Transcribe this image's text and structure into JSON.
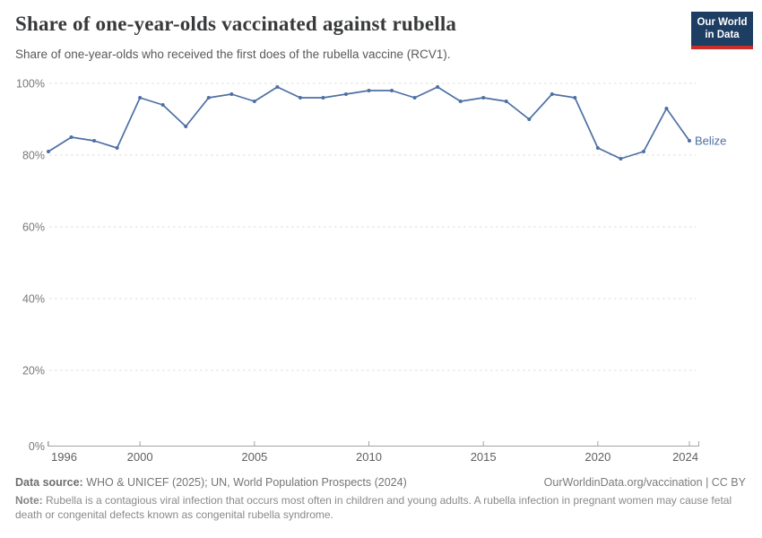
{
  "header": {
    "logo": {
      "line1": "Our World",
      "line2": "in Data",
      "bg_color": "#1d3d63",
      "accent_color": "#cb2d27"
    }
  },
  "chart_data": {
    "type": "line",
    "title": "Share of one-year-olds vaccinated against rubella",
    "subtitle": "Share of one-year-olds who received the first does of the rubella vaccine (RCV1).",
    "x": [
      1996,
      1997,
      1998,
      1999,
      2000,
      2001,
      2002,
      2003,
      2004,
      2005,
      2006,
      2007,
      2008,
      2009,
      2010,
      2011,
      2012,
      2013,
      2014,
      2015,
      2016,
      2017,
      2018,
      2019,
      2020,
      2021,
      2022,
      2023,
      2024
    ],
    "series": [
      {
        "name": "Belize",
        "color": "#4d6fa4",
        "values": [
          81,
          85,
          84,
          82,
          96,
          94,
          88,
          96,
          97,
          95,
          99,
          96,
          96,
          97,
          98,
          98,
          96,
          99,
          95,
          96,
          95,
          90,
          97,
          96,
          82,
          79,
          81,
          93,
          84
        ]
      }
    ],
    "xlabel": "",
    "ylabel": "",
    "ylim": [
      0,
      100
    ],
    "yticks": [
      0,
      20,
      40,
      60,
      80,
      100
    ],
    "ytick_suffix": "%",
    "xticks": [
      1996,
      2000,
      2005,
      2010,
      2015,
      2020,
      2024
    ],
    "grid": "horizontal-dashed",
    "legend_position": "end-of-line-label",
    "colors": {
      "grid": "#dcdcdc",
      "axis": "#a3a3a3",
      "ytick_label": "#787878",
      "xtick_label": "#5f5f5f"
    }
  },
  "footer": {
    "datasource_label": "Data source:",
    "datasource_text": " WHO & UNICEF (2025); UN, World Population Prospects (2024)",
    "link": "OurWorldinData.org/vaccination | CC BY",
    "note_label": "Note:",
    "note_text": " Rubella is a contagious viral infection that occurs most often in children and young adults. A rubella infection in pregnant women may cause fetal death or congenital defects known as congenital rubella syndrome."
  }
}
